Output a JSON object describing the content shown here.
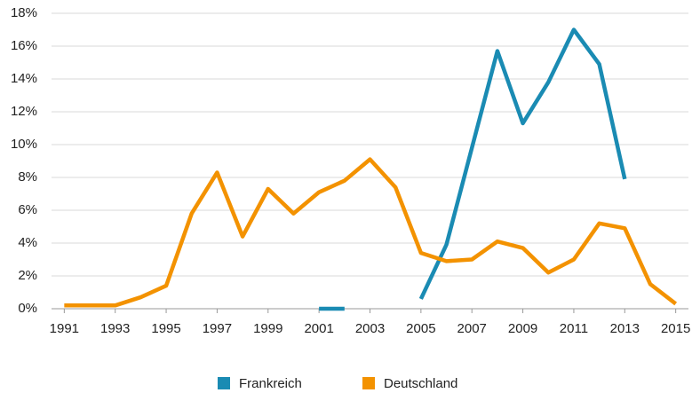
{
  "chart_data": {
    "type": "line",
    "x": [
      1991,
      1992,
      1993,
      1994,
      1995,
      1996,
      1997,
      1998,
      1999,
      2000,
      2001,
      2002,
      2003,
      2004,
      2005,
      2006,
      2007,
      2008,
      2009,
      2010,
      2011,
      2012,
      2013,
      2014,
      2015
    ],
    "series": [
      {
        "name": "Frankreich",
        "color": "#1a8bb3",
        "values": [
          null,
          null,
          null,
          null,
          null,
          null,
          null,
          null,
          null,
          null,
          0,
          0,
          null,
          null,
          0.6,
          3.9,
          9.8,
          15.7,
          11.3,
          13.8,
          17.0,
          14.9,
          7.9,
          null,
          null
        ]
      },
      {
        "name": "Deutschland",
        "color": "#f39200",
        "values": [
          0.2,
          0.2,
          0.2,
          0.7,
          1.4,
          5.8,
          8.3,
          4.4,
          7.3,
          5.8,
          7.1,
          7.8,
          9.1,
          7.4,
          3.4,
          2.9,
          3.0,
          4.1,
          3.7,
          2.2,
          3.0,
          5.2,
          4.9,
          1.5,
          0.3
        ]
      }
    ],
    "xlim": [
      1990.5,
      2015.5
    ],
    "xticks": [
      1991,
      1993,
      1995,
      1997,
      1999,
      2001,
      2003,
      2005,
      2007,
      2009,
      2011,
      2013,
      2015
    ],
    "ylim": [
      0,
      18
    ],
    "yticks": [
      {
        "value": 0,
        "label": "0%"
      },
      {
        "value": 2,
        "label": "2%"
      },
      {
        "value": 4,
        "label": "4%"
      },
      {
        "value": 6,
        "label": "6%"
      },
      {
        "value": 8,
        "label": "8%"
      },
      {
        "value": 10,
        "label": "10%"
      },
      {
        "value": 12,
        "label": "12%"
      },
      {
        "value": 14,
        "label": "14%"
      },
      {
        "value": 16,
        "label": "16%"
      },
      {
        "value": 18,
        "label": "18%"
      }
    ],
    "grid": true,
    "legend": "bottom"
  }
}
